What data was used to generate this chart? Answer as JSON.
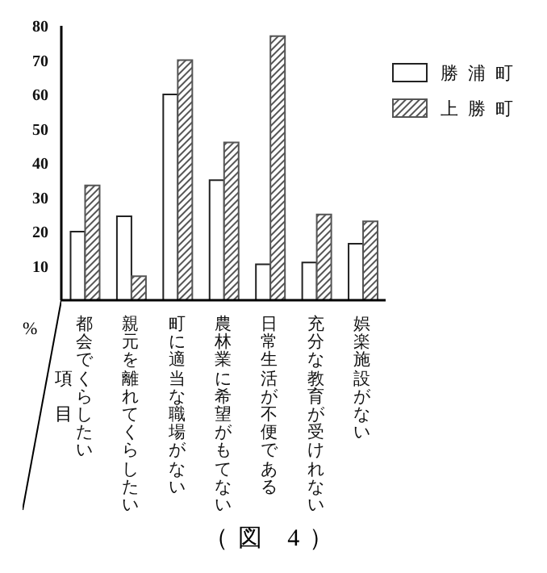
{
  "chart_data": {
    "type": "bar",
    "categories": [
      "都会でくらしたい",
      "親元を離れてくらしたい",
      "町に適当な職場がない",
      "農林業に希望がもてない",
      "日常生活が不便である",
      "充分な教育が受けれない",
      "娯楽施設がない"
    ],
    "series": [
      {
        "name": "勝浦町",
        "color": "#ffffff",
        "values": [
          20,
          24.5,
          60,
          35,
          10.5,
          11,
          16.5
        ]
      },
      {
        "name": "上勝町",
        "color": "#555555",
        "values": [
          33.5,
          7,
          70,
          46,
          77,
          25,
          23
        ]
      }
    ],
    "ylim": [
      0,
      80
    ],
    "yticks": [
      10,
      20,
      30,
      40,
      50,
      60,
      70,
      80
    ],
    "ylabel": "%",
    "xlabel": "項目",
    "legend": "top right",
    "grid": false,
    "annotations": [
      "（図 4）"
    ]
  }
}
